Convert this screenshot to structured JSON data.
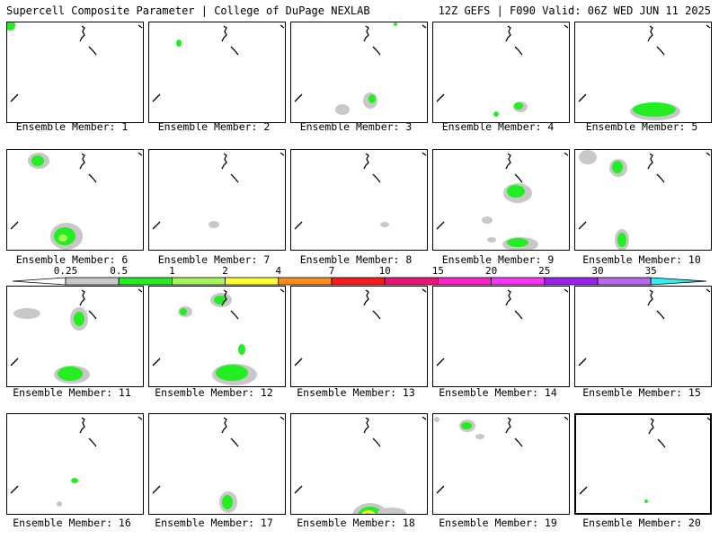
{
  "header": {
    "left": "Supercell Composite Parameter | College of DuPage NEXLAB",
    "right": "12Z GEFS | F090 Valid: 06Z WED JUN 11 2025"
  },
  "members": [
    {
      "label": "Ensemble Member: 1"
    },
    {
      "label": "Ensemble Member: 2"
    },
    {
      "label": "Ensemble Member: 3"
    },
    {
      "label": "Ensemble Member: 4"
    },
    {
      "label": "Ensemble Member: 5"
    },
    {
      "label": "Ensemble Member: 6"
    },
    {
      "label": "Ensemble Member: 7"
    },
    {
      "label": "Ensemble Member: 8"
    },
    {
      "label": "Ensemble Member: 9"
    },
    {
      "label": "Ensemble Member: 10"
    },
    {
      "label": "Ensemble Member: 11"
    },
    {
      "label": "Ensemble Member: 12"
    },
    {
      "label": "Ensemble Member: 13"
    },
    {
      "label": "Ensemble Member: 14"
    },
    {
      "label": "Ensemble Member: 15"
    },
    {
      "label": "Ensemble Member: 16"
    },
    {
      "label": "Ensemble Member: 17"
    },
    {
      "label": "Ensemble Member: 18"
    },
    {
      "label": "Ensemble Member: 19"
    },
    {
      "label": "Ensemble Member: 20"
    }
  ],
  "colorbar": {
    "ticks": [
      "0.25",
      "0.5",
      "1",
      "2",
      "4",
      "7",
      "10",
      "15",
      "20",
      "25",
      "30",
      "35"
    ],
    "colors": [
      "#ffffff",
      "#c8c8c8",
      "#22ee22",
      "#a6f55a",
      "#ffff33",
      "#ff8c1a",
      "#ff1a1a",
      "#ee1177",
      "#ff22cc",
      "#ff33ff",
      "#9922ee",
      "#bb66ee",
      "#33eeee"
    ]
  }
}
